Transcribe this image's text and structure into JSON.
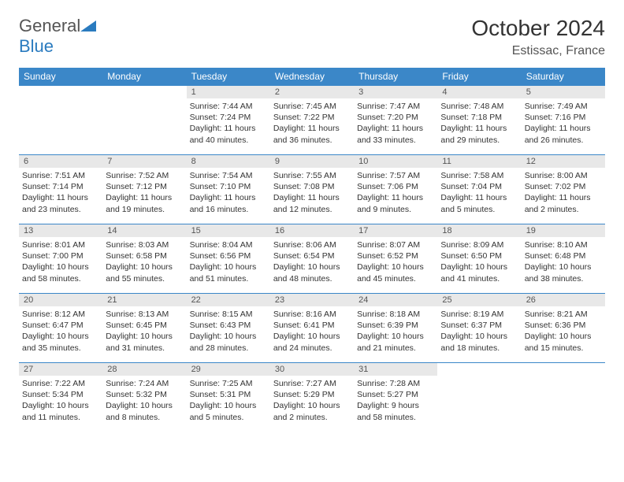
{
  "logo": {
    "text1": "General",
    "text2": "Blue"
  },
  "title": "October 2024",
  "location": "Estissac, France",
  "colors": {
    "header_bg": "#3b87c8",
    "header_text": "#ffffff",
    "row_border": "#3b87c8",
    "daynum_bg": "#e8e8e8",
    "text": "#333333",
    "logo_blue": "#2a7bbf"
  },
  "weekdays": [
    "Sunday",
    "Monday",
    "Tuesday",
    "Wednesday",
    "Thursday",
    "Friday",
    "Saturday"
  ],
  "weeks": [
    [
      null,
      null,
      {
        "n": "1",
        "sr": "Sunrise: 7:44 AM",
        "ss": "Sunset: 7:24 PM",
        "dl": "Daylight: 11 hours and 40 minutes."
      },
      {
        "n": "2",
        "sr": "Sunrise: 7:45 AM",
        "ss": "Sunset: 7:22 PM",
        "dl": "Daylight: 11 hours and 36 minutes."
      },
      {
        "n": "3",
        "sr": "Sunrise: 7:47 AM",
        "ss": "Sunset: 7:20 PM",
        "dl": "Daylight: 11 hours and 33 minutes."
      },
      {
        "n": "4",
        "sr": "Sunrise: 7:48 AM",
        "ss": "Sunset: 7:18 PM",
        "dl": "Daylight: 11 hours and 29 minutes."
      },
      {
        "n": "5",
        "sr": "Sunrise: 7:49 AM",
        "ss": "Sunset: 7:16 PM",
        "dl": "Daylight: 11 hours and 26 minutes."
      }
    ],
    [
      {
        "n": "6",
        "sr": "Sunrise: 7:51 AM",
        "ss": "Sunset: 7:14 PM",
        "dl": "Daylight: 11 hours and 23 minutes."
      },
      {
        "n": "7",
        "sr": "Sunrise: 7:52 AM",
        "ss": "Sunset: 7:12 PM",
        "dl": "Daylight: 11 hours and 19 minutes."
      },
      {
        "n": "8",
        "sr": "Sunrise: 7:54 AM",
        "ss": "Sunset: 7:10 PM",
        "dl": "Daylight: 11 hours and 16 minutes."
      },
      {
        "n": "9",
        "sr": "Sunrise: 7:55 AM",
        "ss": "Sunset: 7:08 PM",
        "dl": "Daylight: 11 hours and 12 minutes."
      },
      {
        "n": "10",
        "sr": "Sunrise: 7:57 AM",
        "ss": "Sunset: 7:06 PM",
        "dl": "Daylight: 11 hours and 9 minutes."
      },
      {
        "n": "11",
        "sr": "Sunrise: 7:58 AM",
        "ss": "Sunset: 7:04 PM",
        "dl": "Daylight: 11 hours and 5 minutes."
      },
      {
        "n": "12",
        "sr": "Sunrise: 8:00 AM",
        "ss": "Sunset: 7:02 PM",
        "dl": "Daylight: 11 hours and 2 minutes."
      }
    ],
    [
      {
        "n": "13",
        "sr": "Sunrise: 8:01 AM",
        "ss": "Sunset: 7:00 PM",
        "dl": "Daylight: 10 hours and 58 minutes."
      },
      {
        "n": "14",
        "sr": "Sunrise: 8:03 AM",
        "ss": "Sunset: 6:58 PM",
        "dl": "Daylight: 10 hours and 55 minutes."
      },
      {
        "n": "15",
        "sr": "Sunrise: 8:04 AM",
        "ss": "Sunset: 6:56 PM",
        "dl": "Daylight: 10 hours and 51 minutes."
      },
      {
        "n": "16",
        "sr": "Sunrise: 8:06 AM",
        "ss": "Sunset: 6:54 PM",
        "dl": "Daylight: 10 hours and 48 minutes."
      },
      {
        "n": "17",
        "sr": "Sunrise: 8:07 AM",
        "ss": "Sunset: 6:52 PM",
        "dl": "Daylight: 10 hours and 45 minutes."
      },
      {
        "n": "18",
        "sr": "Sunrise: 8:09 AM",
        "ss": "Sunset: 6:50 PM",
        "dl": "Daylight: 10 hours and 41 minutes."
      },
      {
        "n": "19",
        "sr": "Sunrise: 8:10 AM",
        "ss": "Sunset: 6:48 PM",
        "dl": "Daylight: 10 hours and 38 minutes."
      }
    ],
    [
      {
        "n": "20",
        "sr": "Sunrise: 8:12 AM",
        "ss": "Sunset: 6:47 PM",
        "dl": "Daylight: 10 hours and 35 minutes."
      },
      {
        "n": "21",
        "sr": "Sunrise: 8:13 AM",
        "ss": "Sunset: 6:45 PM",
        "dl": "Daylight: 10 hours and 31 minutes."
      },
      {
        "n": "22",
        "sr": "Sunrise: 8:15 AM",
        "ss": "Sunset: 6:43 PM",
        "dl": "Daylight: 10 hours and 28 minutes."
      },
      {
        "n": "23",
        "sr": "Sunrise: 8:16 AM",
        "ss": "Sunset: 6:41 PM",
        "dl": "Daylight: 10 hours and 24 minutes."
      },
      {
        "n": "24",
        "sr": "Sunrise: 8:18 AM",
        "ss": "Sunset: 6:39 PM",
        "dl": "Daylight: 10 hours and 21 minutes."
      },
      {
        "n": "25",
        "sr": "Sunrise: 8:19 AM",
        "ss": "Sunset: 6:37 PM",
        "dl": "Daylight: 10 hours and 18 minutes."
      },
      {
        "n": "26",
        "sr": "Sunrise: 8:21 AM",
        "ss": "Sunset: 6:36 PM",
        "dl": "Daylight: 10 hours and 15 minutes."
      }
    ],
    [
      {
        "n": "27",
        "sr": "Sunrise: 7:22 AM",
        "ss": "Sunset: 5:34 PM",
        "dl": "Daylight: 10 hours and 11 minutes."
      },
      {
        "n": "28",
        "sr": "Sunrise: 7:24 AM",
        "ss": "Sunset: 5:32 PM",
        "dl": "Daylight: 10 hours and 8 minutes."
      },
      {
        "n": "29",
        "sr": "Sunrise: 7:25 AM",
        "ss": "Sunset: 5:31 PM",
        "dl": "Daylight: 10 hours and 5 minutes."
      },
      {
        "n": "30",
        "sr": "Sunrise: 7:27 AM",
        "ss": "Sunset: 5:29 PM",
        "dl": "Daylight: 10 hours and 2 minutes."
      },
      {
        "n": "31",
        "sr": "Sunrise: 7:28 AM",
        "ss": "Sunset: 5:27 PM",
        "dl": "Daylight: 9 hours and 58 minutes."
      },
      null,
      null
    ]
  ]
}
